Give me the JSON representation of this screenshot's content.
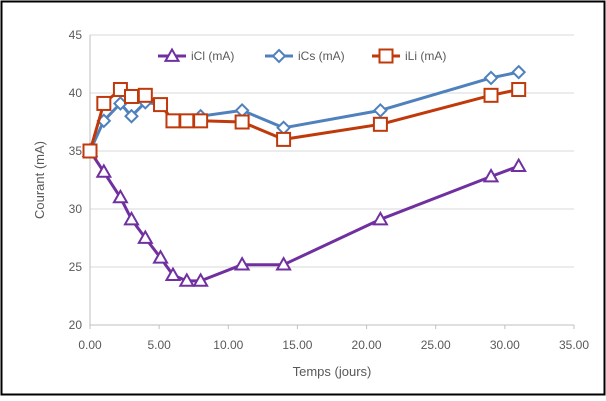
{
  "chart_data": {
    "type": "line",
    "title": "",
    "xlabel": "Temps (jours)",
    "ylabel": "Courant (mA)",
    "xlim": [
      0,
      35
    ],
    "ylim": [
      20,
      45
    ],
    "x_ticks": [
      "0.00",
      "5.00",
      "10.00",
      "15.00",
      "20.00",
      "25.00",
      "30.00",
      "35.00"
    ],
    "y_ticks": [
      "20",
      "25",
      "30",
      "35",
      "40",
      "45"
    ],
    "grid": "horizontal",
    "legend_position": "top",
    "series": [
      {
        "name": "iCl (mA)",
        "color": "#7030a0",
        "marker": "triangle",
        "points": [
          [
            0,
            35
          ],
          [
            1,
            33.2
          ],
          [
            2.2,
            31
          ],
          [
            3,
            29.1
          ],
          [
            4,
            27.5
          ],
          [
            5.1,
            25.8
          ],
          [
            6,
            24.3
          ],
          [
            7,
            23.8
          ],
          [
            8,
            23.8
          ],
          [
            11,
            25.2
          ],
          [
            14,
            25.2
          ],
          [
            21,
            29.1
          ],
          [
            29,
            32.8
          ],
          [
            31,
            33.7
          ]
        ]
      },
      {
        "name": "iCs (mA)",
        "color": "#4f81bd",
        "marker": "diamond",
        "points": [
          [
            0,
            35
          ],
          [
            1,
            37.6
          ],
          [
            2.2,
            39.1
          ],
          [
            3,
            38
          ],
          [
            4,
            39.2
          ],
          [
            5.1,
            39
          ],
          [
            6,
            37.6
          ],
          [
            7,
            37.6
          ],
          [
            8,
            38
          ],
          [
            11,
            38.5
          ],
          [
            14,
            37
          ],
          [
            21,
            38.5
          ],
          [
            29,
            41.3
          ],
          [
            31,
            41.8
          ]
        ]
      },
      {
        "name": "iLi (mA)",
        "color": "#c0390b",
        "marker": "square",
        "points": [
          [
            0,
            35
          ],
          [
            1,
            39.1
          ],
          [
            2.2,
            40.3
          ],
          [
            3,
            39.7
          ],
          [
            4,
            39.8
          ],
          [
            5.1,
            39
          ],
          [
            6,
            37.6
          ],
          [
            7,
            37.6
          ],
          [
            8,
            37.6
          ],
          [
            11,
            37.5
          ],
          [
            14,
            36
          ],
          [
            21,
            37.3
          ],
          [
            29,
            39.8
          ],
          [
            31,
            40.3
          ]
        ]
      }
    ]
  }
}
